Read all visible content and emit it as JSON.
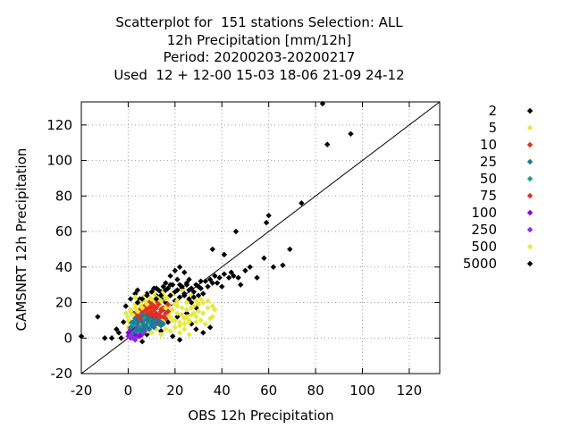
{
  "chart_data": {
    "type": "scatter",
    "title_lines": [
      "Scatterplot for  151 stations Selection: ALL",
      "12h Precipitation [mm/12h]",
      "Period: 20200203-20200217",
      "Used  12 + 12-00 15-03 18-06 21-09 24-12"
    ],
    "xlabel": "OBS 12h Precipitation",
    "ylabel": "CAMSNRT 12h Precipitation",
    "xlim": [
      -20,
      133
    ],
    "ylim": [
      -20,
      133
    ],
    "xticks": [
      -20,
      0,
      20,
      40,
      60,
      80,
      100,
      120
    ],
    "yticks": [
      -20,
      0,
      20,
      40,
      60,
      80,
      100,
      120
    ],
    "grid": true,
    "diagonal_line": true,
    "legend_position": "right",
    "series": [
      {
        "name": "5000",
        "color": "#000000",
        "points": [
          [
            -20,
            1
          ],
          [
            -13,
            12
          ],
          [
            -10,
            0
          ],
          [
            -7,
            0
          ],
          [
            -5,
            5
          ],
          [
            -3,
            0
          ],
          [
            -2,
            9
          ],
          [
            -1,
            18
          ],
          [
            1,
            22
          ],
          [
            2,
            14
          ],
          [
            3,
            25
          ],
          [
            4,
            27
          ],
          [
            5,
            22
          ],
          [
            6,
            15
          ],
          [
            8,
            25
          ],
          [
            10,
            20
          ],
          [
            12,
            24
          ],
          [
            14,
            26
          ],
          [
            15,
            22
          ],
          [
            16,
            20
          ],
          [
            17,
            18
          ],
          [
            18,
            30
          ],
          [
            19,
            25
          ],
          [
            20,
            21
          ],
          [
            21,
            33
          ],
          [
            22,
            30
          ],
          [
            23,
            28
          ],
          [
            24,
            24
          ],
          [
            25,
            30
          ],
          [
            26,
            22
          ],
          [
            27,
            20
          ],
          [
            28,
            26
          ],
          [
            29,
            17
          ],
          [
            30,
            29
          ],
          [
            31,
            28
          ],
          [
            32,
            25
          ],
          [
            33,
            32
          ],
          [
            34,
            29
          ],
          [
            35,
            33
          ],
          [
            36,
            31
          ],
          [
            37,
            35
          ],
          [
            38,
            31
          ],
          [
            39,
            34
          ],
          [
            40,
            29
          ],
          [
            41,
            36
          ],
          [
            43,
            34
          ],
          [
            44,
            37
          ],
          [
            45,
            35
          ],
          [
            47,
            34
          ],
          [
            48,
            30
          ],
          [
            50,
            38
          ],
          [
            52,
            40
          ],
          [
            55,
            34
          ],
          [
            58,
            45
          ],
          [
            59,
            65
          ],
          [
            60,
            69
          ],
          [
            62,
            40
          ],
          [
            66,
            41
          ],
          [
            69,
            50
          ],
          [
            74,
            76
          ],
          [
            36,
            50
          ],
          [
            41,
            47
          ],
          [
            46,
            60
          ],
          [
            83,
            132
          ],
          [
            85,
            109
          ],
          [
            95,
            115
          ],
          [
            22,
            40
          ],
          [
            24,
            37
          ],
          [
            26,
            33
          ],
          [
            18,
            35
          ],
          [
            20,
            38
          ],
          [
            16,
            31
          ],
          [
            12,
            28
          ],
          [
            10,
            12
          ],
          [
            13,
            9
          ],
          [
            17,
            9
          ],
          [
            21,
            12
          ],
          [
            25,
            14
          ],
          [
            27,
            8
          ],
          [
            29,
            5
          ],
          [
            32,
            3
          ],
          [
            35,
            6
          ],
          [
            19,
            1
          ],
          [
            8,
            2
          ],
          [
            14,
            4
          ],
          [
            22,
            -1
          ],
          [
            6,
            -2
          ],
          [
            -4,
            3
          ]
        ]
      },
      {
        "name": "500",
        "color": "#e8e840",
        "points": [
          [
            0,
            12
          ],
          [
            1,
            16
          ],
          [
            2,
            8
          ],
          [
            3,
            19
          ],
          [
            4,
            11
          ],
          [
            5,
            14
          ],
          [
            6,
            18
          ],
          [
            7,
            9
          ],
          [
            8,
            13
          ],
          [
            9,
            21
          ],
          [
            10,
            16
          ],
          [
            11,
            8
          ],
          [
            12,
            19
          ],
          [
            13,
            11
          ],
          [
            14,
            17
          ],
          [
            15,
            9
          ],
          [
            16,
            22
          ],
          [
            17,
            13
          ],
          [
            18,
            15
          ],
          [
            19,
            10
          ],
          [
            20,
            19
          ],
          [
            21,
            14
          ],
          [
            22,
            7
          ],
          [
            23,
            17
          ],
          [
            24,
            11
          ],
          [
            25,
            16
          ],
          [
            26,
            9
          ],
          [
            27,
            13
          ],
          [
            28,
            18
          ],
          [
            29,
            12
          ],
          [
            30,
            15
          ],
          [
            31,
            10
          ],
          [
            32,
            14
          ],
          [
            33,
            8
          ],
          [
            34,
            17
          ],
          [
            35,
            11
          ],
          [
            2,
            4
          ],
          [
            4,
            2
          ],
          [
            6,
            6
          ],
          [
            8,
            4
          ],
          [
            10,
            3
          ],
          [
            12,
            5
          ],
          [
            14,
            2
          ],
          [
            16,
            5
          ],
          [
            18,
            4
          ],
          [
            20,
            6
          ],
          [
            22,
            3
          ],
          [
            24,
            5
          ],
          [
            26,
            2
          ],
          [
            3,
            23
          ],
          [
            7,
            24
          ],
          [
            11,
            25
          ],
          [
            15,
            26
          ],
          [
            19,
            25
          ],
          [
            23,
            27
          ],
          [
            27,
            24
          ],
          [
            31,
            22
          ],
          [
            13,
            20
          ],
          [
            17,
            18
          ],
          [
            21,
            21
          ],
          [
            25,
            20
          ],
          [
            29,
            21
          ],
          [
            5,
            20
          ],
          [
            9,
            6
          ],
          [
            1,
            2
          ],
          [
            37,
            16
          ],
          [
            36,
            12
          ],
          [
            -1,
            14
          ],
          [
            0,
            6
          ]
        ]
      },
      {
        "name": "250",
        "color": "#8a2be2",
        "points": [
          [
            1,
            0
          ],
          [
            2,
            2
          ],
          [
            3,
            -1
          ],
          [
            4,
            1
          ],
          [
            2,
            4
          ],
          [
            5,
            3
          ],
          [
            1,
            3
          ],
          [
            3,
            5
          ],
          [
            6,
            2
          ],
          [
            0,
            1
          ],
          [
            4,
            6
          ],
          [
            7,
            4
          ],
          [
            2,
            0
          ]
        ]
      },
      {
        "name": "100",
        "color": "#9400d3",
        "points": [
          [
            0,
            3
          ],
          [
            1,
            5
          ],
          [
            3,
            2
          ],
          [
            5,
            1
          ],
          [
            6,
            5
          ],
          [
            2,
            6
          ]
        ]
      },
      {
        "name": "75",
        "color": "#e03020",
        "points": [
          [
            6,
            14
          ],
          [
            8,
            16
          ],
          [
            10,
            18
          ],
          [
            12,
            17
          ],
          [
            14,
            15
          ],
          [
            9,
            20
          ],
          [
            11,
            13
          ],
          [
            7,
            18
          ],
          [
            13,
            19
          ],
          [
            15,
            17
          ],
          [
            16,
            14
          ],
          [
            8,
            12
          ],
          [
            10,
            15
          ],
          [
            12,
            21
          ],
          [
            5,
            16
          ],
          [
            17,
            19
          ],
          [
            14,
            12
          ],
          [
            11,
            9
          ],
          [
            9,
            10
          ],
          [
            7,
            11
          ],
          [
            13,
            8
          ],
          [
            6,
            9
          ]
        ]
      },
      {
        "name": "50",
        "color": "#20a080",
        "points": [
          [
            2,
            7
          ],
          [
            4,
            9
          ],
          [
            6,
            11
          ],
          [
            8,
            8
          ],
          [
            3,
            12
          ],
          [
            5,
            6
          ],
          [
            7,
            13
          ],
          [
            9,
            9
          ],
          [
            1,
            9
          ],
          [
            4,
            4
          ],
          [
            6,
            7
          ],
          [
            8,
            11
          ],
          [
            10,
            10
          ],
          [
            3,
            8
          ],
          [
            5,
            10
          ]
        ]
      },
      {
        "name": "25",
        "color": "#1a7aa0",
        "points": [
          [
            1,
            6
          ],
          [
            2,
            9
          ],
          [
            3,
            11
          ],
          [
            4,
            8
          ],
          [
            5,
            12
          ],
          [
            6,
            9
          ],
          [
            7,
            7
          ],
          [
            8,
            10
          ],
          [
            9,
            12
          ],
          [
            10,
            9
          ],
          [
            11,
            11
          ],
          [
            12,
            8
          ],
          [
            13,
            10
          ],
          [
            14,
            7
          ],
          [
            3,
            4
          ],
          [
            5,
            5
          ],
          [
            7,
            6
          ],
          [
            9,
            5
          ],
          [
            11,
            6
          ],
          [
            2,
            3
          ],
          [
            4,
            5
          ],
          [
            6,
            4
          ],
          [
            8,
            6
          ],
          [
            10,
            7
          ],
          [
            12,
            11
          ],
          [
            6,
            13
          ],
          [
            4,
            10
          ],
          [
            8,
            13
          ],
          [
            14,
            9
          ],
          [
            15,
            8
          ]
        ]
      },
      {
        "name": "10",
        "color": "#e03020",
        "points": [
          [
            4,
            13
          ],
          [
            6,
            15
          ],
          [
            8,
            14
          ],
          [
            10,
            13
          ],
          [
            12,
            14
          ],
          [
            7,
            16
          ],
          [
            9,
            17
          ],
          [
            11,
            16
          ],
          [
            13,
            13
          ],
          [
            5,
            11
          ],
          [
            15,
            12
          ],
          [
            16,
            11
          ],
          [
            14,
            16
          ],
          [
            10,
            19
          ],
          [
            12,
            12
          ],
          [
            8,
            18
          ],
          [
            3,
            14
          ],
          [
            17,
            15
          ],
          [
            11,
            18
          ],
          [
            9,
            14
          ]
        ]
      },
      {
        "name": "5",
        "color": "#e8e840",
        "points": [
          [
            0,
            10
          ],
          [
            2,
            13
          ],
          [
            4,
            15
          ],
          [
            6,
            17
          ],
          [
            8,
            19
          ],
          [
            10,
            22
          ],
          [
            12,
            23
          ],
          [
            14,
            21
          ],
          [
            16,
            17
          ],
          [
            18,
            12
          ],
          [
            20,
            10
          ],
          [
            22,
            9
          ],
          [
            24,
            8
          ],
          [
            26,
            10
          ],
          [
            28,
            14
          ],
          [
            19,
            16
          ],
          [
            21,
            18
          ],
          [
            23,
            13
          ],
          [
            25,
            12
          ],
          [
            3,
            17
          ],
          [
            5,
            19
          ],
          [
            7,
            21
          ],
          [
            1,
            15
          ],
          [
            17,
            23
          ],
          [
            15,
            24
          ],
          [
            9,
            23
          ],
          [
            11,
            21
          ],
          [
            13,
            22
          ],
          [
            27,
            17
          ],
          [
            29,
            9
          ],
          [
            30,
            19
          ],
          [
            32,
            20
          ],
          [
            34,
            21
          ],
          [
            36,
            18
          ]
        ]
      },
      {
        "name": "2",
        "color": "#000000",
        "points": [
          [
            4,
            20
          ],
          [
            6,
            22
          ],
          [
            8,
            24
          ],
          [
            10,
            26
          ],
          [
            12,
            22
          ],
          [
            14,
            24
          ],
          [
            16,
            27
          ],
          [
            18,
            24
          ],
          [
            20,
            26
          ],
          [
            22,
            23
          ],
          [
            24,
            25
          ],
          [
            26,
            27
          ],
          [
            28,
            23
          ],
          [
            30,
            24
          ],
          [
            21,
            27
          ],
          [
            23,
            29
          ],
          [
            25,
            31
          ],
          [
            27,
            28
          ],
          [
            29,
            30
          ],
          [
            31,
            32
          ],
          [
            17,
            28
          ],
          [
            19,
            30
          ],
          [
            15,
            29
          ],
          [
            13,
            27
          ],
          [
            11,
            28
          ]
        ]
      }
    ],
    "legend_order": [
      "2",
      "5",
      "10",
      "25",
      "50",
      "75",
      "100",
      "250",
      "500",
      "5000"
    ],
    "legend_colors": {
      "2": "#000000",
      "5": "#e8e840",
      "10": "#e03020",
      "25": "#1a7aa0",
      "50": "#20a080",
      "75": "#e03020",
      "100": "#9400d3",
      "250": "#8a2be2",
      "500": "#e8e840",
      "5000": "#000000"
    }
  }
}
